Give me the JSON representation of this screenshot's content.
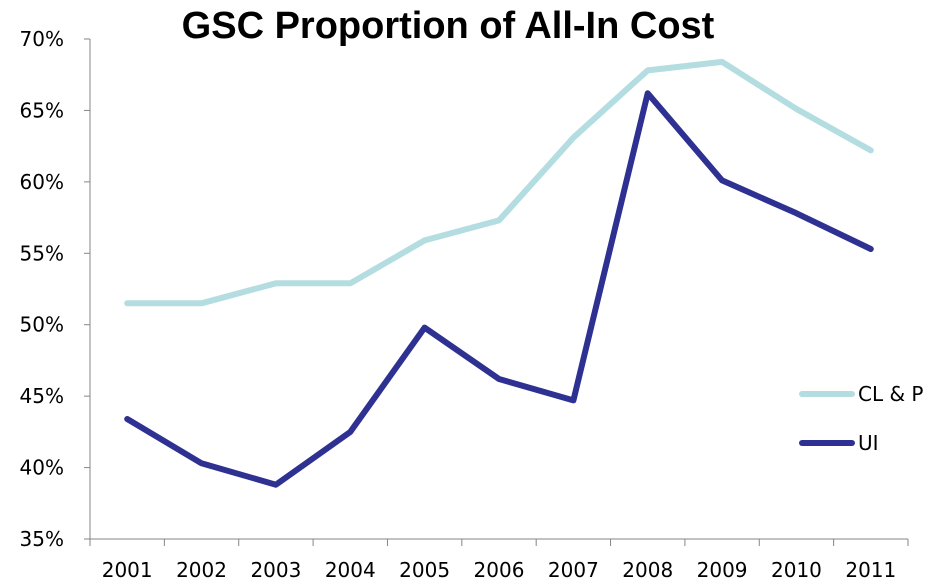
{
  "chart_data": {
    "type": "line",
    "title": "GSC Proportion of All-In Cost",
    "xlabel": "",
    "ylabel": "",
    "categories": [
      "2001",
      "2002",
      "2003",
      "2004",
      "2005",
      "2006",
      "2007",
      "2008",
      "2009",
      "2010",
      "2011"
    ],
    "ylim": [
      0.35,
      0.7
    ],
    "yticks": [
      "35%",
      "40%",
      "45%",
      "50%",
      "55%",
      "60%",
      "65%",
      "70%"
    ],
    "grid": false,
    "legend_position": "right",
    "series": [
      {
        "name": "CL & P",
        "color": "#b3dde0",
        "values": [
          0.515,
          0.515,
          0.529,
          0.529,
          0.559,
          0.573,
          0.631,
          0.678,
          0.684,
          0.651,
          0.622
        ]
      },
      {
        "name": "UI",
        "color": "#2e3192",
        "values": [
          0.434,
          0.403,
          0.388,
          0.425,
          0.498,
          0.462,
          0.447,
          0.662,
          0.601,
          0.578,
          0.553
        ]
      }
    ]
  }
}
